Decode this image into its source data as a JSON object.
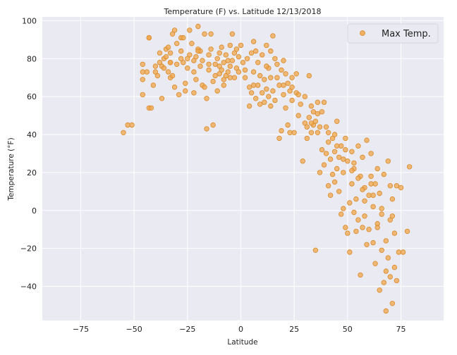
{
  "chart_data": {
    "type": "scatter",
    "title": "Temperature (F) vs. Latitude 12/13/2018",
    "xlabel": "Latitude",
    "ylabel": "Temperature (°F)",
    "xlim": [
      -93,
      95
    ],
    "ylim": [
      -58,
      102
    ],
    "xticks": [
      -75,
      -50,
      -25,
      0,
      25,
      50,
      75
    ],
    "yticks": [
      -40,
      -20,
      0,
      20,
      40,
      60,
      80,
      100
    ],
    "grid": true,
    "legend_position": "top-right",
    "colors": {
      "marker_fill": "#f0a64a",
      "marker_edge": "#d98a2b",
      "plot_bg": "#eaeaf2",
      "grid": "#ffffff"
    },
    "series": [
      {
        "name": "Max Temp.",
        "points": [
          [
            -55,
            41
          ],
          [
            -53,
            45
          ],
          [
            -51,
            45
          ],
          [
            -46,
            61
          ],
          [
            -46,
            69
          ],
          [
            -46,
            73
          ],
          [
            -46,
            77
          ],
          [
            -44,
            73
          ],
          [
            -43,
            91
          ],
          [
            -43,
            91
          ],
          [
            -43,
            54
          ],
          [
            -42,
            54
          ],
          [
            -41,
            66
          ],
          [
            -40,
            76
          ],
          [
            -39,
            71
          ],
          [
            -38,
            78
          ],
          [
            -38,
            83
          ],
          [
            -37,
            76
          ],
          [
            -37,
            59
          ],
          [
            -36,
            80
          ],
          [
            -35,
            85
          ],
          [
            -35,
            81
          ],
          [
            -34,
            73
          ],
          [
            -34,
            86
          ],
          [
            -33,
            83
          ],
          [
            -33,
            70
          ],
          [
            -33,
            78
          ],
          [
            -32,
            93
          ],
          [
            -32,
            71
          ],
          [
            -31,
            95
          ],
          [
            -31,
            65
          ],
          [
            -30,
            88
          ],
          [
            -30,
            77
          ],
          [
            -29,
            61
          ],
          [
            -28,
            84
          ],
          [
            -28,
            91
          ],
          [
            -27,
            91
          ],
          [
            -27,
            78
          ],
          [
            -26,
            63
          ],
          [
            -26,
            67
          ],
          [
            -25,
            80
          ],
          [
            -25,
            75
          ],
          [
            -24,
            82
          ],
          [
            -24,
            95
          ],
          [
            -23,
            88
          ],
          [
            -22,
            73
          ],
          [
            -22,
            79
          ],
          [
            -22,
            62
          ],
          [
            -21,
            81
          ],
          [
            -21,
            69
          ],
          [
            -20,
            97
          ],
          [
            -20,
            85
          ],
          [
            -19,
            84
          ],
          [
            -19,
            76
          ],
          [
            -18,
            66
          ],
          [
            -18,
            79
          ],
          [
            -17,
            65
          ],
          [
            -17,
            93
          ],
          [
            -16,
            43
          ],
          [
            -16,
            59
          ],
          [
            -15,
            82
          ],
          [
            -15,
            74
          ],
          [
            -14,
            93
          ],
          [
            -14,
            85
          ],
          [
            -13,
            45
          ],
          [
            -13,
            68
          ],
          [
            -12,
            77
          ],
          [
            -12,
            71
          ],
          [
            -11,
            80
          ],
          [
            -11,
            63
          ],
          [
            -10,
            83
          ],
          [
            -10,
            76
          ],
          [
            -9,
            74
          ],
          [
            -9,
            86
          ],
          [
            -8,
            69
          ],
          [
            -8,
            66
          ],
          [
            -7,
            71
          ],
          [
            -7,
            82
          ],
          [
            -6,
            79
          ],
          [
            -6,
            73
          ],
          [
            -5,
            87
          ],
          [
            -5,
            76
          ],
          [
            -4,
            93
          ],
          [
            -4,
            79
          ],
          [
            -3,
            70
          ],
          [
            -3,
            83
          ],
          [
            -2,
            85
          ],
          [
            -2,
            75
          ],
          [
            -1,
            81
          ],
          [
            -1,
            73
          ],
          [
            0,
            87
          ],
          [
            1,
            78
          ],
          [
            2,
            74
          ],
          [
            3,
            80
          ],
          [
            4,
            65
          ],
          [
            4,
            55
          ],
          [
            5,
            83
          ],
          [
            5,
            62
          ],
          [
            6,
            89
          ],
          [
            6,
            73
          ],
          [
            7,
            84
          ],
          [
            7,
            59
          ],
          [
            8,
            66
          ],
          [
            8,
            78
          ],
          [
            9,
            71
          ],
          [
            9,
            56
          ],
          [
            10,
            62
          ],
          [
            10,
            82
          ],
          [
            11,
            57
          ],
          [
            11,
            69
          ],
          [
            12,
            87
          ],
          [
            12,
            64
          ],
          [
            13,
            60
          ],
          [
            13,
            75
          ],
          [
            14,
            55
          ],
          [
            14,
            84
          ],
          [
            15,
            92
          ],
          [
            15,
            63
          ],
          [
            16,
            80
          ],
          [
            16,
            58
          ],
          [
            17,
            77
          ],
          [
            17,
            70
          ],
          [
            18,
            38
          ],
          [
            18,
            66
          ],
          [
            19,
            74
          ],
          [
            19,
            42
          ],
          [
            20,
            61
          ],
          [
            20,
            79
          ],
          [
            21,
            54
          ],
          [
            21,
            72
          ],
          [
            22,
            45
          ],
          [
            22,
            67
          ],
          [
            23,
            41
          ],
          [
            23,
            63
          ],
          [
            24,
            70
          ],
          [
            24,
            58
          ],
          [
            25,
            41
          ],
          [
            26,
            62
          ],
          [
            26,
            72
          ],
          [
            27,
            50
          ],
          [
            28,
            56
          ],
          [
            29,
            26
          ],
          [
            30,
            46
          ],
          [
            30,
            60
          ],
          [
            31,
            38
          ],
          [
            31,
            44
          ],
          [
            32,
            49
          ],
          [
            32,
            71
          ],
          [
            33,
            41
          ],
          [
            33,
            55
          ],
          [
            34,
            45
          ],
          [
            34,
            52
          ],
          [
            35,
            -21
          ],
          [
            35,
            47
          ],
          [
            36,
            57
          ],
          [
            36,
            41
          ],
          [
            37,
            44
          ],
          [
            37,
            20
          ],
          [
            38,
            32
          ],
          [
            38,
            52
          ],
          [
            39,
            24
          ],
          [
            39,
            57
          ],
          [
            40,
            30
          ],
          [
            40,
            44
          ],
          [
            41,
            13
          ],
          [
            41,
            36
          ],
          [
            42,
            8
          ],
          [
            42,
            27
          ],
          [
            43,
            19
          ],
          [
            43,
            38
          ],
          [
            44,
            15
          ],
          [
            44,
            31
          ],
          [
            45,
            22
          ],
          [
            45,
            47
          ],
          [
            46,
            10
          ],
          [
            46,
            28
          ],
          [
            47,
            -2
          ],
          [
            47,
            34
          ],
          [
            48,
            1
          ],
          [
            48,
            20
          ],
          [
            49,
            -9
          ],
          [
            49,
            38
          ],
          [
            50,
            -12
          ],
          [
            50,
            26
          ],
          [
            51,
            -22
          ],
          [
            51,
            4
          ],
          [
            52,
            14
          ],
          [
            52,
            31
          ],
          [
            53,
            -1
          ],
          [
            53,
            22
          ],
          [
            54,
            -11
          ],
          [
            54,
            6
          ],
          [
            55,
            -5
          ],
          [
            55,
            34
          ],
          [
            56,
            -34
          ],
          [
            56,
            18
          ],
          [
            57,
            -9
          ],
          [
            57,
            28
          ],
          [
            58,
            12
          ],
          [
            58,
            -3
          ],
          [
            59,
            37
          ],
          [
            59,
            -18
          ],
          [
            60,
            8
          ],
          [
            60,
            -10
          ],
          [
            61,
            18
          ],
          [
            61,
            30
          ],
          [
            62,
            -17
          ],
          [
            62,
            2
          ],
          [
            63,
            -28
          ],
          [
            63,
            14
          ],
          [
            64,
            22
          ],
          [
            64,
            -7
          ],
          [
            65,
            -42
          ],
          [
            65,
            9
          ],
          [
            66,
            -21
          ],
          [
            66,
            1
          ],
          [
            67,
            -38
          ],
          [
            67,
            19
          ],
          [
            68,
            -53
          ],
          [
            68,
            -16
          ],
          [
            69,
            -25
          ],
          [
            69,
            26
          ],
          [
            70,
            -35
          ],
          [
            70,
            13
          ],
          [
            71,
            -49
          ],
          [
            71,
            6
          ],
          [
            72,
            -30
          ],
          [
            72,
            -12
          ],
          [
            73,
            -37
          ],
          [
            73,
            13
          ],
          [
            74,
            -22
          ],
          [
            75,
            12
          ],
          [
            76,
            -22
          ],
          [
            78,
            -11
          ],
          [
            79,
            23
          ],
          [
            -10,
            72
          ],
          [
            -5,
            70
          ],
          [
            2,
            70
          ],
          [
            12,
            76
          ],
          [
            20,
            66
          ],
          [
            27,
            61
          ],
          [
            33,
            46
          ],
          [
            41,
            41
          ],
          [
            45,
            34
          ],
          [
            48,
            27
          ],
          [
            52,
            21
          ],
          [
            55,
            17
          ],
          [
            58,
            5
          ],
          [
            62,
            8
          ],
          [
            66,
            -2
          ],
          [
            70,
            -5
          ],
          [
            -28,
            80
          ],
          [
            -36,
            75
          ],
          [
            -40,
            73
          ],
          [
            -33,
            78
          ],
          [
            -20,
            84
          ],
          [
            -15,
            77
          ],
          [
            -8,
            78
          ],
          [
            6,
            66
          ],
          [
            14,
            70
          ],
          [
            24,
            65
          ],
          [
            36,
            51
          ],
          [
            44,
            40
          ],
          [
            49,
            32
          ],
          [
            53,
            25
          ],
          [
            57,
            11
          ],
          [
            61,
            14
          ],
          [
            64,
            -9
          ],
          [
            68,
            -32
          ],
          [
            71,
            -3
          ]
        ]
      }
    ]
  }
}
